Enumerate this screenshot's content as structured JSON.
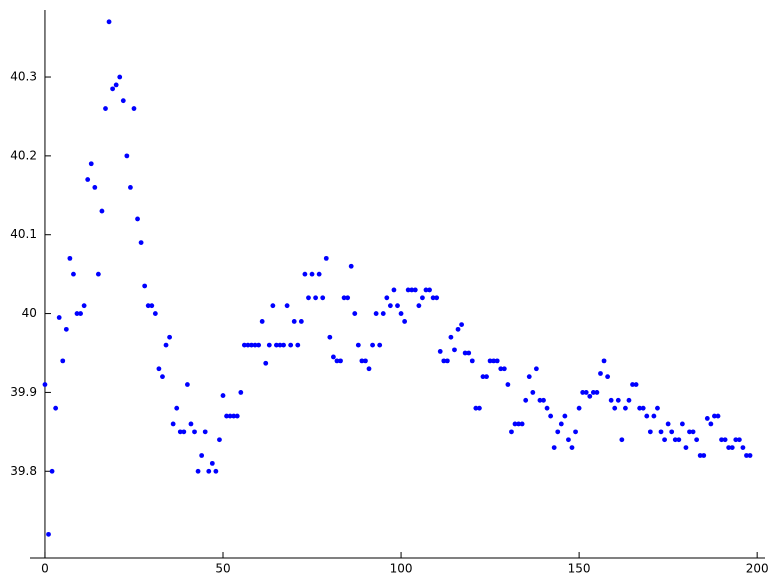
{
  "chart_data": {
    "type": "scatter",
    "color": "#0000ff",
    "x": [
      0,
      1,
      2,
      3,
      4,
      5,
      6,
      7,
      8,
      9,
      10,
      11,
      12,
      13,
      14,
      15,
      16,
      17,
      18,
      19,
      20,
      21,
      22,
      23,
      24,
      25,
      26,
      27,
      28,
      29,
      30,
      31,
      32,
      33,
      34,
      35,
      36,
      37,
      38,
      39,
      40,
      41,
      42,
      43,
      44,
      45,
      46,
      47,
      48,
      49,
      50,
      51,
      52,
      53,
      54,
      55,
      56,
      57,
      58,
      59,
      60,
      61,
      62,
      63,
      64,
      65,
      66,
      67,
      68,
      69,
      70,
      71,
      72,
      73,
      74,
      75,
      76,
      77,
      78,
      79,
      80,
      81,
      82,
      83,
      84,
      85,
      86,
      87,
      88,
      89,
      90,
      91,
      92,
      93,
      94,
      95,
      96,
      97,
      98,
      99,
      100,
      101,
      102,
      103,
      104,
      105,
      106,
      107,
      108,
      109,
      110,
      111,
      112,
      113,
      114,
      115,
      116,
      117,
      118,
      119,
      120,
      121,
      122,
      123,
      124,
      125,
      126,
      127,
      128,
      129,
      130,
      131,
      132,
      133,
      134,
      135,
      136,
      137,
      138,
      139,
      140,
      141,
      142,
      143,
      144,
      145,
      146,
      147,
      148,
      149,
      150,
      151,
      152,
      153,
      154,
      155,
      156,
      157,
      158,
      159,
      160,
      161,
      162,
      163,
      164,
      165,
      166,
      167,
      168,
      169,
      170,
      171,
      172,
      173,
      174,
      175,
      176,
      177,
      178,
      179,
      180,
      181,
      182,
      183,
      184,
      185,
      186,
      187,
      188,
      189,
      190,
      191,
      192,
      193,
      194,
      195,
      196,
      197,
      198
    ],
    "values": [
      39.91,
      39.72,
      39.8,
      39.88,
      39.995,
      39.94,
      39.98,
      40.07,
      40.05,
      40.0,
      40.0,
      40.01,
      40.17,
      40.19,
      40.16,
      40.05,
      40.13,
      40.26,
      40.37,
      40.285,
      40.29,
      40.3,
      40.27,
      40.2,
      40.16,
      40.26,
      40.12,
      40.09,
      40.035,
      40.01,
      40.01,
      40.0,
      39.93,
      39.92,
      39.96,
      39.97,
      39.86,
      39.88,
      39.85,
      39.85,
      39.91,
      39.86,
      39.85,
      39.8,
      39.82,
      39.85,
      39.8,
      39.81,
      39.8,
      39.84,
      39.896,
      39.87,
      39.87,
      39.87,
      39.87,
      39.9,
      39.96,
      39.96,
      39.96,
      39.96,
      39.96,
      39.99,
      39.937,
      39.96,
      40.01,
      39.96,
      39.96,
      39.96,
      40.01,
      39.96,
      39.99,
      39.96,
      39.99,
      40.05,
      40.02,
      40.05,
      40.02,
      40.05,
      40.02,
      40.07,
      39.97,
      39.945,
      39.94,
      39.94,
      40.02,
      40.02,
      40.06,
      40.0,
      39.96,
      39.94,
      39.94,
      39.93,
      39.96,
      40.0,
      39.96,
      40.0,
      40.02,
      40.01,
      40.03,
      40.01,
      40.0,
      39.99,
      40.03,
      40.03,
      40.03,
      40.01,
      40.02,
      40.03,
      40.03,
      40.02,
      40.02,
      39.952,
      39.94,
      39.94,
      39.97,
      39.954,
      39.98,
      39.986,
      39.95,
      39.95,
      39.94,
      39.88,
      39.88,
      39.92,
      39.92,
      39.94,
      39.94,
      39.94,
      39.93,
      39.93,
      39.91,
      39.85,
      39.86,
      39.86,
      39.86,
      39.89,
      39.92,
      39.9,
      39.93,
      39.89,
      39.89,
      39.88,
      39.87,
      39.83,
      39.85,
      39.86,
      39.87,
      39.84,
      39.83,
      39.85,
      39.88,
      39.9,
      39.9,
      39.895,
      39.9,
      39.9,
      39.924,
      39.94,
      39.92,
      39.89,
      39.88,
      39.89,
      39.84,
      39.88,
      39.89,
      39.91,
      39.91,
      39.88,
      39.88,
      39.87,
      39.85,
      39.87,
      39.88,
      39.85,
      39.84,
      39.86,
      39.85,
      39.84,
      39.84,
      39.86,
      39.83,
      39.85,
      39.85,
      39.84,
      39.82,
      39.82,
      39.867,
      39.86,
      39.87,
      39.87,
      39.84,
      39.84,
      39.83,
      39.83,
      39.84,
      39.84,
      39.83,
      39.82,
      39.82
    ],
    "xlim": [
      -4.2,
      202.2
    ],
    "ylim": [
      39.69,
      40.385
    ],
    "xticks": [
      0,
      50,
      100,
      150,
      200
    ],
    "yticks": [
      39.8,
      39.9,
      40,
      40.1,
      40.2,
      40.3
    ]
  }
}
